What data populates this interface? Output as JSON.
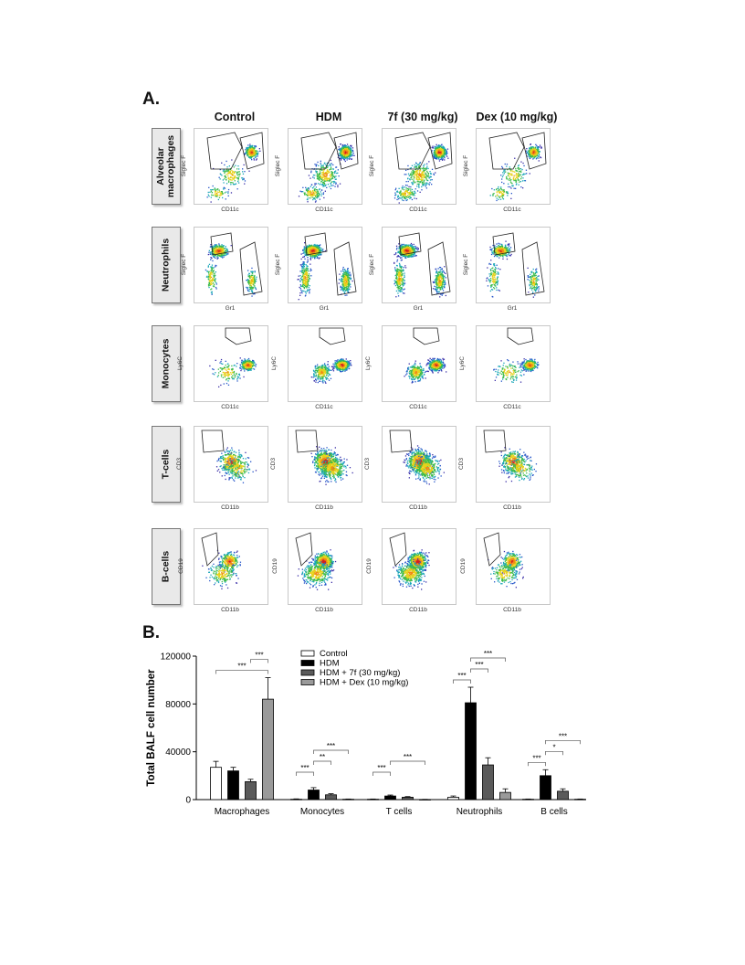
{
  "panel_a": {
    "label": "A.",
    "columns": [
      "Control",
      "HDM",
      "7f (30 mg/kg)",
      "Dex (10 mg/kg)"
    ],
    "rows": [
      {
        "name": "Alveolar\nmacrophages",
        "xlabel": "CD11c",
        "ylabel": "Siglec F"
      },
      {
        "name": "Neutrophils",
        "xlabel": "Gr1",
        "ylabel": "Siglec F"
      },
      {
        "name": "Monocytes",
        "xlabel": "CD11c",
        "ylabel": "Ly6C"
      },
      {
        "name": "T-cells",
        "xlabel": "CD11b",
        "ylabel": "CD3"
      },
      {
        "name": "B-cells",
        "xlabel": "CD11b",
        "ylabel": "CD19"
      }
    ]
  },
  "panel_b": {
    "label": "B."
  },
  "chart_data": {
    "type": "bar",
    "ylabel": "Total BALF cell number",
    "xlabel": "",
    "ylim": [
      0,
      120000
    ],
    "yticks": [
      "0",
      "40000",
      "80000",
      "120000"
    ],
    "ytick_values": [
      0,
      40000,
      80000,
      120000
    ],
    "categories": [
      "Macrophages",
      "Monocytes",
      "T cells",
      "Neutrophils",
      "B cells"
    ],
    "series": [
      {
        "name": "Control",
        "color": "#ffffff",
        "values": [
          27000,
          300,
          300,
          2000,
          300
        ],
        "errors": [
          5000,
          300,
          200,
          1000,
          200
        ]
      },
      {
        "name": "HDM",
        "color": "#000000",
        "values": [
          24000,
          8000,
          3000,
          81000,
          20000
        ],
        "errors": [
          3000,
          2000,
          800,
          13000,
          5000
        ]
      },
      {
        "name": "HDM + 7f (30 mg/kg)",
        "color": "#5a5a5a",
        "values": [
          15000,
          4000,
          2000,
          29000,
          7000
        ],
        "errors": [
          2000,
          900,
          500,
          6000,
          2000
        ]
      },
      {
        "name": "HDM + Dex (10 mg/kg)",
        "color": "#9a9a9a",
        "values": [
          84000,
          300,
          100,
          6000,
          300
        ],
        "errors": [
          18000,
          200,
          100,
          3000,
          200
        ]
      }
    ],
    "significance": [
      {
        "category": 0,
        "from": 0,
        "to": 3,
        "label": "***"
      },
      {
        "category": 0,
        "from": 2,
        "to": 3,
        "label": "***"
      },
      {
        "category": 1,
        "from": 0,
        "to": 1,
        "label": "***"
      },
      {
        "category": 1,
        "from": 1,
        "to": 2,
        "label": "**"
      },
      {
        "category": 1,
        "from": 1,
        "to": 3,
        "label": "***"
      },
      {
        "category": 2,
        "from": 0,
        "to": 1,
        "label": "***"
      },
      {
        "category": 2,
        "from": 1,
        "to": 3,
        "label": "***"
      },
      {
        "category": 3,
        "from": 0,
        "to": 1,
        "label": "***"
      },
      {
        "category": 3,
        "from": 1,
        "to": 2,
        "label": "***"
      },
      {
        "category": 3,
        "from": 1,
        "to": 3,
        "label": "***"
      },
      {
        "category": 4,
        "from": 0,
        "to": 1,
        "label": "***"
      },
      {
        "category": 4,
        "from": 1,
        "to": 2,
        "label": "*"
      },
      {
        "category": 4,
        "from": 1,
        "to": 3,
        "label": "***"
      }
    ],
    "legend_position": "top-center"
  }
}
